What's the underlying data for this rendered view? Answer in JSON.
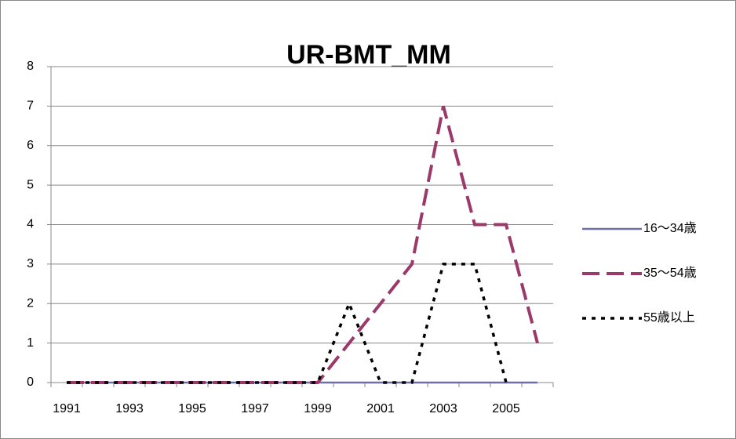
{
  "chart_data": {
    "type": "line",
    "title": "UR-BMT_MM",
    "categories": [
      "1991",
      null,
      "1993",
      null,
      "1995",
      null,
      "1997",
      null,
      "1999",
      null,
      "2001",
      null,
      "2003",
      null,
      "2005",
      null
    ],
    "series": [
      {
        "name": "16～34歳",
        "color": "#6f6fa8",
        "line_style": "solid",
        "values": [
          0,
          0,
          0,
          0,
          0,
          0,
          0,
          0,
          0,
          0,
          0,
          0,
          0,
          0,
          0,
          0
        ]
      },
      {
        "name": "35～54歳",
        "color": "#9b3a6a",
        "line_style": "dashed",
        "values": [
          0,
          0,
          0,
          0,
          0,
          0,
          0,
          0,
          0,
          1,
          2,
          3,
          7,
          4,
          4,
          1
        ]
      },
      {
        "name": "55歳以上",
        "color": "#000000",
        "line_style": "dotted",
        "values": [
          0,
          0,
          0,
          0,
          0,
          0,
          0,
          0,
          0,
          2,
          0,
          0,
          3,
          3,
          0,
          null
        ]
      }
    ],
    "ylim": [
      0,
      8
    ],
    "yticks": [
      0,
      1,
      2,
      3,
      4,
      5,
      6,
      7,
      8
    ],
    "grid": true,
    "legend": "right"
  }
}
